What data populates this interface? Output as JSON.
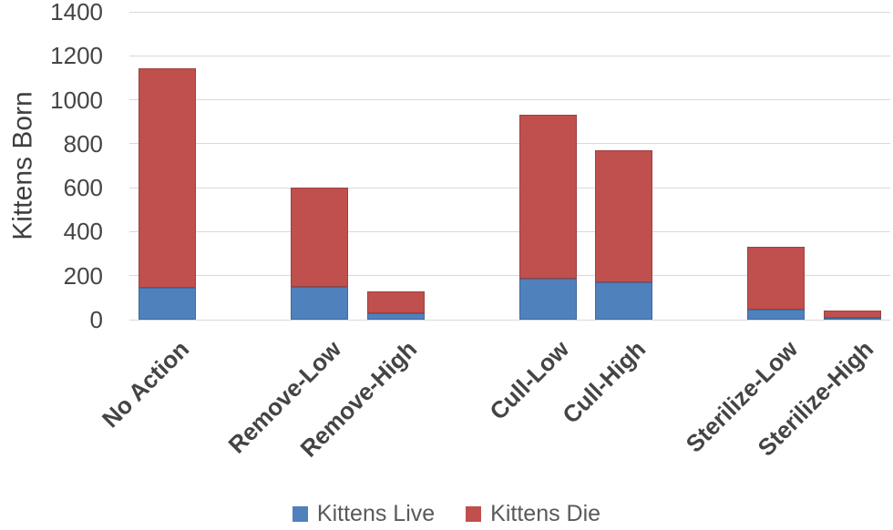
{
  "chart_data": {
    "type": "bar",
    "stacked": true,
    "title": "",
    "xlabel": "",
    "ylabel": "Kittens Born",
    "ylim": [
      0,
      1400
    ],
    "ytick_step": 200,
    "grid": true,
    "legend_position": "bottom",
    "categories": [
      "No Action",
      "Remove-Low",
      "Remove-High",
      "Cull-Low",
      "Cull-High",
      "Sterilize-Low",
      "Sterilize-High"
    ],
    "series": [
      {
        "name": "Kittens Live",
        "color": "#4F81BD",
        "values": [
          145,
          150,
          30,
          185,
          170,
          45,
          10
        ]
      },
      {
        "name": "Kittens Die",
        "color": "#C0504D",
        "values": [
          1000,
          450,
          100,
          745,
          600,
          285,
          30
        ]
      }
    ],
    "category_slots": [
      0,
      2,
      3,
      5,
      6,
      8,
      9
    ],
    "total_slots": 10,
    "gridline_color": "#D9D9D9",
    "tick_text_color": "#454545",
    "category_text_color": "#444444",
    "legend_text_color": "#595959",
    "axis_title_color": "#3F3F3F"
  }
}
